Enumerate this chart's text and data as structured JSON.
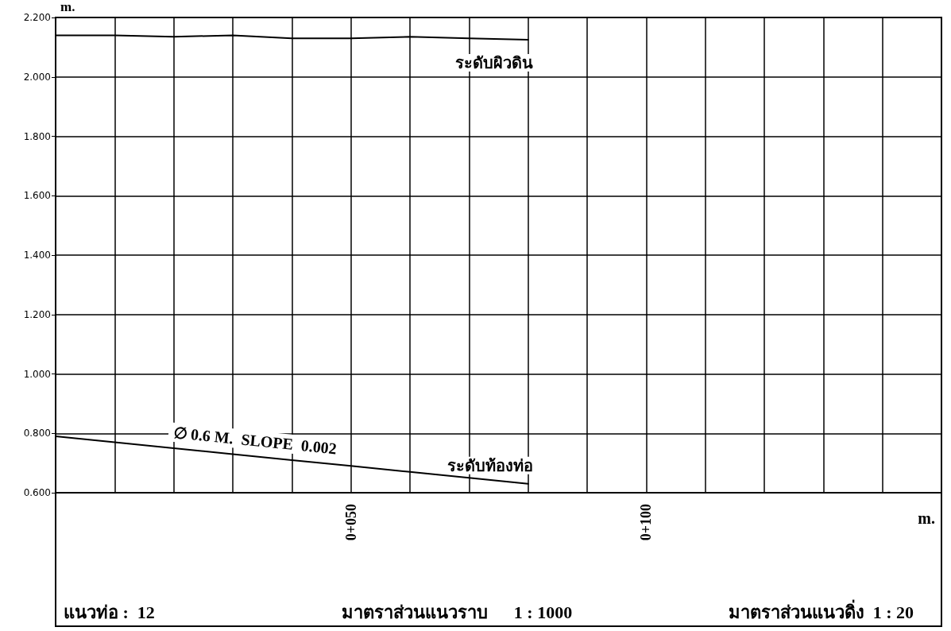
{
  "chart_data": {
    "type": "line",
    "xlabel": "m.",
    "ylabel": "m.",
    "categories": [
      null,
      null,
      null,
      null,
      null,
      "0+050",
      null,
      null,
      null,
      null,
      "0+100",
      null,
      null,
      null,
      null,
      null
    ],
    "ylim": [
      0.6,
      2.2
    ],
    "yticks": [
      {
        "value": 0.6,
        "label": "0.600"
      },
      {
        "value": 0.8,
        "label": "0.800"
      },
      {
        "value": 1.0,
        "label": "1.000"
      },
      {
        "value": 1.2,
        "label": "1.200"
      },
      {
        "value": 1.4,
        "label": "1.400"
      },
      {
        "value": 1.6,
        "label": "1.600"
      },
      {
        "value": 1.8,
        "label": "1.800"
      },
      {
        "value": 2.0,
        "label": "2.000"
      },
      {
        "value": 2.2,
        "label": "2.200"
      }
    ],
    "grid": true,
    "marker": "none",
    "line_style": "solid",
    "series": [
      {
        "color": "#000000",
        "values": [
          2.14,
          2.14,
          2.135,
          2.14,
          2.13,
          2.13,
          2.135,
          2.13,
          2.125,
          null,
          null,
          null,
          null,
          null,
          null,
          null
        ]
      },
      {
        "color": "#000000",
        "values": [
          0.79,
          0.77,
          0.75,
          0.73,
          0.71,
          0.69,
          0.67,
          0.65,
          0.63,
          null,
          null,
          null,
          null,
          null,
          null,
          null
        ]
      }
    ],
    "annotations": [
      "ระดับผิวดิน",
      "ระดับท้องท่อ",
      "∅ 0.6 M.  SLOPE  0.002",
      "แนวท่อ :  12",
      "มาตราส่วนแนวราบ      1 : 1000",
      "มาตราส่วนแนวดิ่ง  1 : 20"
    ]
  }
}
